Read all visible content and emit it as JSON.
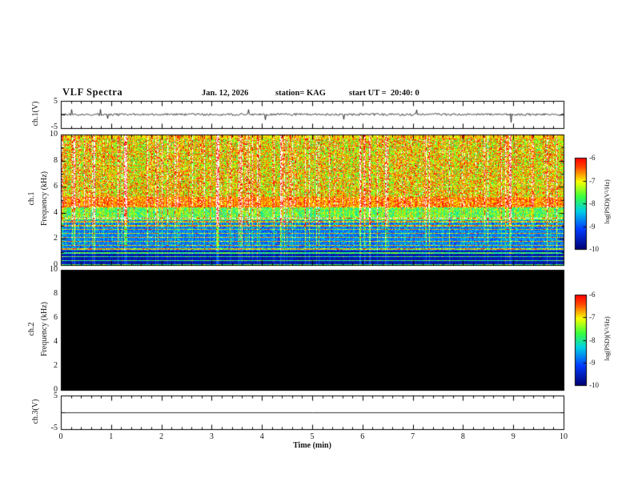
{
  "header": {
    "title": "VLF Spectra",
    "date": "Jan. 12, 2026",
    "station": "station= KAG",
    "start_ut": "start UT =  20:40: 0"
  },
  "xaxis": {
    "label": "Time (min)",
    "min": 0,
    "max": 10,
    "ticks": [
      "0",
      "1",
      "2",
      "3",
      "4",
      "5",
      "6",
      "7",
      "8",
      "9",
      "10"
    ]
  },
  "panels": {
    "ch1_wave": {
      "ylabel": "ch.1(V)",
      "yticks": [
        "5",
        "-5"
      ],
      "ymin": -5,
      "ymax": 5
    },
    "ch1_spec": {
      "name": "ch.1",
      "ylabel": "Frequency (kHz)",
      "yticks": [
        "10",
        "8",
        "6",
        "4",
        "2",
        "0"
      ],
      "ymin": 0,
      "ymax": 10
    },
    "ch2_spec": {
      "name": "ch.2",
      "ylabel": "Frequency (kHz)",
      "yticks": [
        "10",
        "8",
        "6",
        "4",
        "2",
        "0"
      ],
      "ymin": 0,
      "ymax": 10
    },
    "ch3_wave": {
      "ylabel": "ch.3(V)",
      "yticks": [
        "5",
        "-5"
      ],
      "ymin": -5,
      "ymax": 5
    }
  },
  "colorbars": [
    {
      "label": "log(PSD)(V²/Hz)",
      "ticks": [
        "-6",
        "-7",
        "-8",
        "-9",
        "-10"
      ],
      "vmax": -6,
      "vmin": -10
    },
    {
      "label": "log(PSD)(V²/Hz)",
      "ticks": [
        "-6",
        "-7",
        "-8",
        "-9",
        "-10"
      ],
      "vmax": -6,
      "vmin": -10
    }
  ],
  "chart_data": [
    {
      "type": "line",
      "panel": "ch.1(V) waveform",
      "xlabel": "Time (min)",
      "xlim": [
        0,
        10
      ],
      "ylim": [
        -5,
        5
      ],
      "yticks": [
        5,
        -5
      ],
      "description": "Noisy voltage trace fluctuating tightly around 0 V for the full 10 minutes with sporadic impulsive spikes of roughly ±1 to ±2 V."
    },
    {
      "type": "heatmap",
      "panel": "ch.1 spectrogram",
      "xlabel": "Time (min)",
      "ylabel": "Frequency (kHz)",
      "xlim": [
        0,
        10
      ],
      "ylim": [
        0,
        10
      ],
      "colorbar_label": "log(PSD)(V²/Hz)",
      "clim": [
        -10,
        -6
      ],
      "description": "Dense broadband VLF activity: yellow-green speckled background above ~5 kHz crossed by many red/white vertical sferic streaks spanning ~2-10 kHz; brighter yellow band near 4-5 kHz; blue low-power background between ~1-3 kHz with narrow green/cyan horizontal harmonic lines about every 0.3 kHz; darkest levels (near -10) below ~1 kHz."
    },
    {
      "type": "heatmap",
      "panel": "ch.2 spectrogram",
      "xlabel": "Time (min)",
      "ylabel": "Frequency (kHz)",
      "xlim": [
        0,
        10
      ],
      "ylim": [
        0,
        10
      ],
      "colorbar_label": "log(PSD)(V²/Hz)",
      "clim": [
        -10,
        -6
      ],
      "description": "No signal: the entire panel is at or below the -10 color floor (solid black)."
    },
    {
      "type": "line",
      "panel": "ch.3(V) waveform",
      "xlabel": "Time (min)",
      "xlim": [
        0,
        10
      ],
      "ylim": [
        -5,
        5
      ],
      "yticks": [
        5,
        -5
      ],
      "description": "Perfectly flat line at 0 V for the whole interval."
    }
  ]
}
